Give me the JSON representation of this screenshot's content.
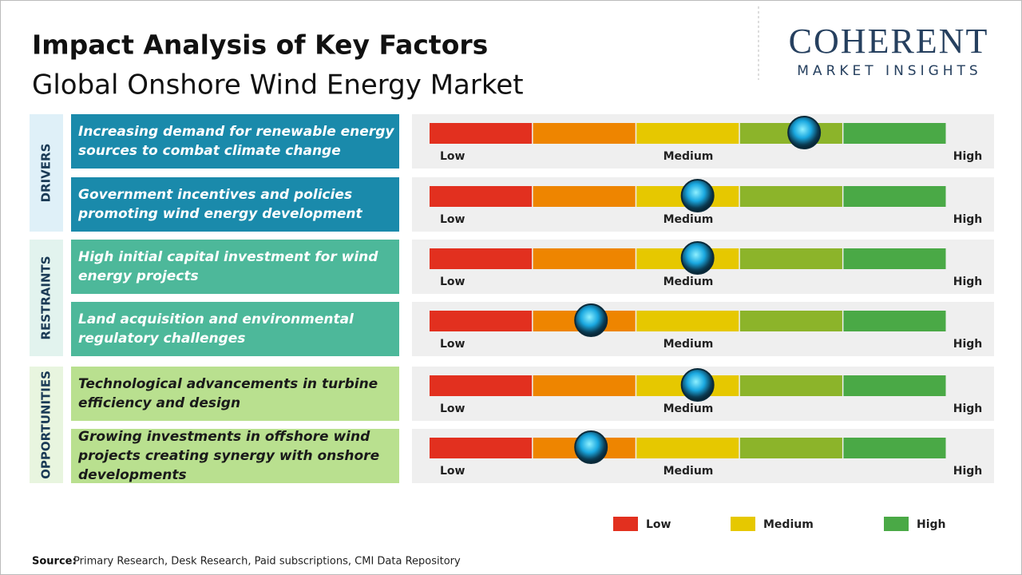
{
  "header": {
    "title": "Impact Analysis of Key Factors",
    "subtitle": "Global Onshore Wind Energy Market"
  },
  "logo": {
    "name": "COHERENT",
    "tagline": "MARKET INSIGHTS"
  },
  "scale": {
    "labels": [
      "Low",
      "Medium",
      "High"
    ],
    "xlim": [
      0,
      5
    ],
    "segment_colors": [
      "#e2301f",
      "#ee8500",
      "#e6c800",
      "#8cb42a",
      "#4aa946"
    ]
  },
  "groups": [
    {
      "label": "DRIVERS",
      "color": "#1a8aab",
      "band": "#dff0f8",
      "text_color": "#ffffff",
      "factors": [
        {
          "text": "Increasing demand for renewable energy sources to combat climate change",
          "impact": 3.62
        },
        {
          "text": "Government incentives and policies promoting wind energy development",
          "impact": 2.59
        }
      ]
    },
    {
      "label": "RESTRAINTS",
      "color": "#4db89a",
      "band": "#e2f3ee",
      "text_color": "#ffffff",
      "factors": [
        {
          "text": "High initial capital investment for wind energy projects",
          "impact": 2.59
        },
        {
          "text": "Land acquisition and environmental regulatory challenges",
          "impact": 1.56
        }
      ]
    },
    {
      "label": "OPPORTUNITIES",
      "color": "#b9e08f",
      "band": "#e8f5df",
      "text_color": "#1a1a1a",
      "factors": [
        {
          "text": "Technological advancements in turbine efficiency and design",
          "impact": 2.59
        },
        {
          "text": "Growing investments in offshore wind projects creating synergy with onshore developments",
          "impact": 1.56
        }
      ]
    }
  ],
  "legend": [
    {
      "label": "Low",
      "color": "#e2301f"
    },
    {
      "label": "Medium",
      "color": "#e6c800"
    },
    {
      "label": "High",
      "color": "#4aa946"
    }
  ],
  "source": {
    "label": "Source:",
    "text": "Primary Research, Desk Research, Paid subscriptions, CMI Data Repository"
  }
}
